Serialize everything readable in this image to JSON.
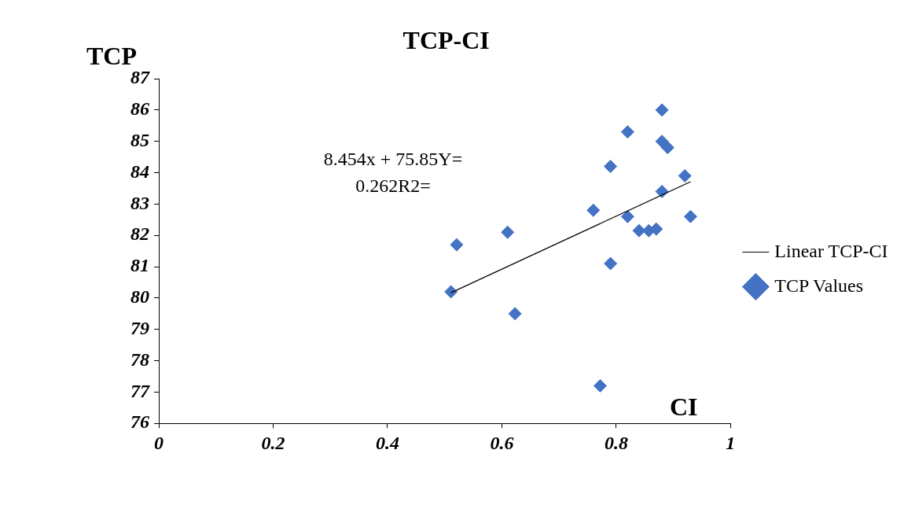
{
  "chart_data": {
    "type": "scatter",
    "title": "TCP-CI",
    "xlabel": "CI",
    "ylabel": "TCP",
    "xlim": [
      0,
      1
    ],
    "xticks": [
      0,
      0.2,
      0.4,
      0.6,
      0.8,
      1
    ],
    "ylim": [
      76,
      87
    ],
    "yticks": [
      76,
      77,
      78,
      79,
      80,
      81,
      82,
      83,
      84,
      85,
      86,
      87
    ],
    "grid": false,
    "legend": "right",
    "marker": "diamond",
    "annotations": [
      "8.454x + 75.85Y=",
      "0.262R2="
    ],
    "series": [
      {
        "name": "TCP Values",
        "color": "#4472c4",
        "x": [
          0.511,
          0.521,
          0.61,
          0.623,
          0.76,
          0.772,
          0.79,
          0.79,
          0.82,
          0.82,
          0.84,
          0.857,
          0.87,
          0.88,
          0.88,
          0.89,
          0.88,
          0.92,
          0.93
        ],
        "values": [
          80.2,
          81.7,
          82.1,
          79.5,
          82.8,
          77.2,
          81.1,
          84.2,
          85.3,
          82.6,
          82.15,
          82.15,
          82.2,
          86.0,
          85.0,
          84.8,
          83.4,
          83.9,
          82.6
        ]
      },
      {
        "name": "Linear TCP-CI",
        "type": "line",
        "color": "#000000",
        "marker": "none",
        "x": [
          0.511,
          0.93
        ],
        "values": [
          80.17,
          83.71
        ]
      }
    ]
  }
}
